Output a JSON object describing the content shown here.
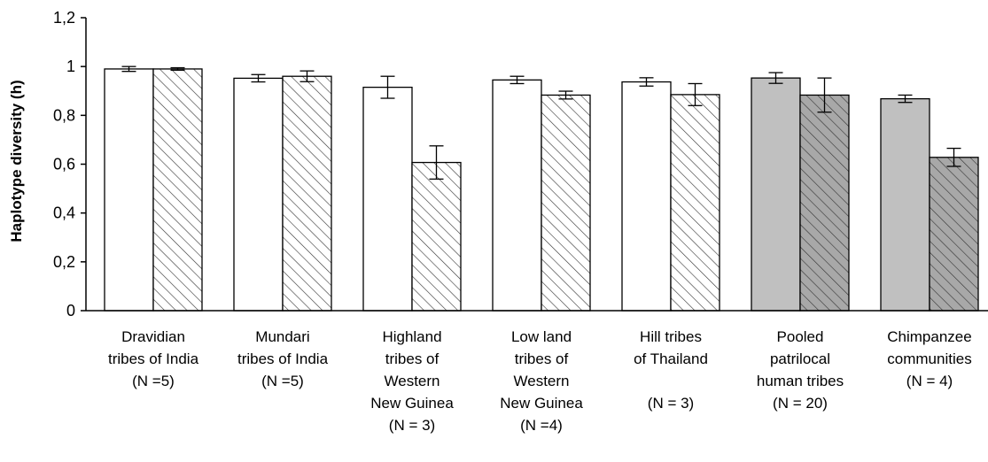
{
  "chart_data": {
    "type": "bar",
    "title": "",
    "xlabel": "",
    "ylabel": "Haplotype diversity (h)",
    "ylim": [
      0,
      1.2
    ],
    "yticks": [
      "0",
      "0,2",
      "0,4",
      "0,6",
      "0,8",
      "1",
      "1,2"
    ],
    "grid": false,
    "legend": "none",
    "categories": [
      {
        "lines": [
          "Dravidian",
          "tribes of India",
          "(N =5)"
        ]
      },
      {
        "lines": [
          "Mundari",
          "tribes of India",
          "(N =5)"
        ]
      },
      {
        "lines": [
          "Highland",
          "tribes of",
          "Western",
          "New Guinea",
          "(N = 3)"
        ]
      },
      {
        "lines": [
          "Low land",
          "tribes of",
          "Western",
          "New Guinea",
          "(N =4)"
        ]
      },
      {
        "lines": [
          "Hill tribes",
          "of Thailand",
          "",
          "(N = 3)"
        ]
      },
      {
        "lines": [
          "Pooled",
          "patrilocal",
          "human tribes",
          "(N = 20)"
        ]
      },
      {
        "lines": [
          "Chimpanzee",
          "communities",
          "(N = 4)"
        ]
      }
    ],
    "series": [
      {
        "pattern": "solid",
        "values": [
          0.99,
          0.952,
          0.915,
          0.945,
          0.937,
          0.953,
          0.868
        ],
        "errors": [
          0.01,
          0.015,
          0.045,
          0.015,
          0.017,
          0.022,
          0.015
        ],
        "fills": [
          "#ffffff",
          "#ffffff",
          "#ffffff",
          "#ffffff",
          "#ffffff",
          "#c0c0c0",
          "#c0c0c0"
        ]
      },
      {
        "pattern": "hatched",
        "values": [
          0.99,
          0.96,
          0.607,
          0.883,
          0.885,
          0.883,
          0.628
        ],
        "errors": [
          0.005,
          0.022,
          0.068,
          0.016,
          0.045,
          0.07,
          0.037
        ],
        "fills": [
          "#ffffff",
          "#ffffff",
          "#ffffff",
          "#ffffff",
          "#ffffff",
          "#a8a8a8",
          "#a8a8a8"
        ]
      }
    ]
  }
}
